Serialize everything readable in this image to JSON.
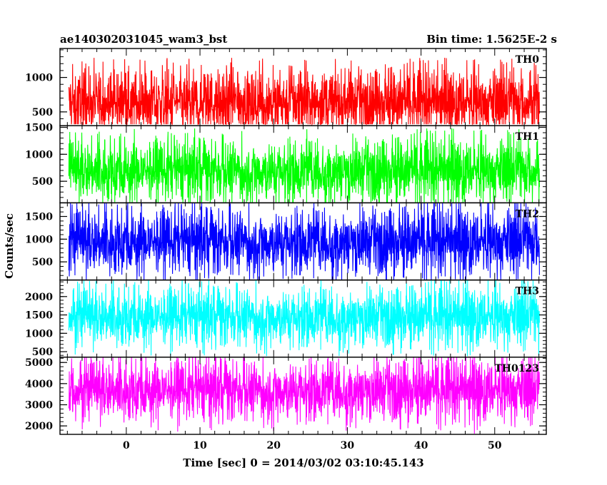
{
  "chart_data": {
    "type": "line",
    "title_left": "ae140302031045_wam3_bst",
    "title_right": "Bin time: 1.5625E-2 s",
    "xlabel": "Time [sec] 0 = 2014/03/02 03:10:45.143",
    "ylabel": "Counts/sec",
    "xlim": [
      -9,
      57
    ],
    "x_ticks": [
      0,
      10,
      20,
      30,
      40,
      50
    ],
    "x_tick_labels": [
      "0",
      "10",
      "20",
      "30",
      "40",
      "50"
    ],
    "data_x_range": [
      -7.8,
      56.1
    ],
    "bin_time": 0.015625,
    "panels": [
      {
        "name": "TH0",
        "color": "#ff0000",
        "ylim": [
          300,
          1420
        ],
        "yticks": [
          500,
          1000
        ],
        "ytick_labels": [
          "500",
          "1000"
        ],
        "mean": 640,
        "spread": 430,
        "min": 320,
        "max": 1420
      },
      {
        "name": "TH1",
        "color": "#00ff00",
        "ylim": [
          100,
          1530
        ],
        "yticks": [
          500,
          1000,
          1500
        ],
        "ytick_labels": [
          "500",
          "1000",
          "1500"
        ],
        "mean": 700,
        "spread": 520,
        "min": 110,
        "max": 1530
      },
      {
        "name": "TH2",
        "color": "#0000ff",
        "ylim": [
          100,
          1800
        ],
        "yticks": [
          500,
          1000,
          1500
        ],
        "ytick_labels": [
          "500",
          "1000",
          "1500"
        ],
        "mean": 950,
        "spread": 650,
        "min": 110,
        "max": 1790
      },
      {
        "name": "TH3",
        "color": "#00ffff",
        "ylim": [
          350,
          2450
        ],
        "yticks": [
          500,
          1000,
          1500,
          2000
        ],
        "ytick_labels": [
          "500",
          "1000",
          "1500",
          "2000"
        ],
        "mean": 1450,
        "spread": 720,
        "min": 380,
        "max": 2450
      },
      {
        "name": "TH0123",
        "color": "#ff00ff",
        "ylim": [
          1600,
          5250
        ],
        "yticks": [
          2000,
          3000,
          4000,
          5000
        ],
        "ytick_labels": [
          "2000",
          "3000",
          "4000",
          "5000"
        ],
        "mean": 3700,
        "spread": 1300,
        "min": 1620,
        "max": 5250
      }
    ]
  }
}
